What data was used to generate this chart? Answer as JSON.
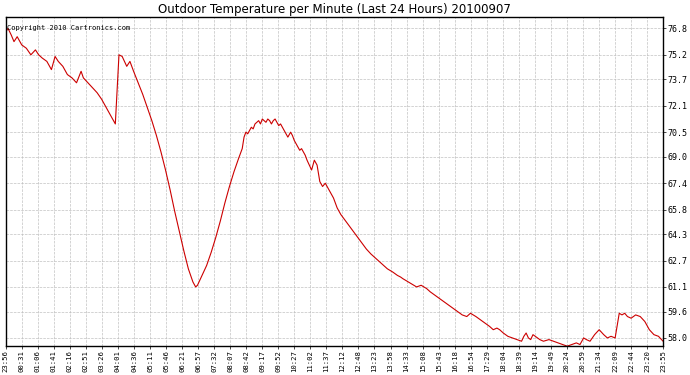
{
  "title": "Outdoor Temperature per Minute (Last 24 Hours) 20100907",
  "copyright_text": "Copyright 2010 Cartronics.com",
  "line_color": "#cc0000",
  "background_color": "#ffffff",
  "grid_color": "#bbbbbb",
  "y_min": 57.5,
  "y_max": 77.5,
  "yticks": [
    58.0,
    59.6,
    61.1,
    62.7,
    64.3,
    65.8,
    67.4,
    69.0,
    70.5,
    72.1,
    73.7,
    75.2,
    76.8
  ],
  "xtick_labels": [
    "23:56",
    "00:31",
    "01:06",
    "01:41",
    "02:16",
    "02:51",
    "03:26",
    "04:01",
    "04:36",
    "05:11",
    "05:46",
    "06:21",
    "06:57",
    "07:32",
    "08:07",
    "08:42",
    "09:17",
    "09:52",
    "10:27",
    "11:02",
    "11:37",
    "12:12",
    "12:48",
    "13:23",
    "13:58",
    "14:33",
    "15:08",
    "15:43",
    "16:18",
    "16:54",
    "17:29",
    "18:04",
    "18:39",
    "19:14",
    "19:49",
    "20:24",
    "20:59",
    "21:34",
    "22:09",
    "22:44",
    "23:20",
    "23:55"
  ],
  "curve_points": [
    [
      0,
      76.6
    ],
    [
      5,
      76.8
    ],
    [
      12,
      76.4
    ],
    [
      18,
      76.0
    ],
    [
      25,
      76.3
    ],
    [
      35,
      75.8
    ],
    [
      45,
      75.6
    ],
    [
      55,
      75.2
    ],
    [
      65,
      75.5
    ],
    [
      72,
      75.2
    ],
    [
      80,
      75.0
    ],
    [
      90,
      74.8
    ],
    [
      100,
      74.3
    ],
    [
      108,
      75.1
    ],
    [
      115,
      74.8
    ],
    [
      125,
      74.5
    ],
    [
      135,
      74.0
    ],
    [
      145,
      73.8
    ],
    [
      155,
      73.5
    ],
    [
      165,
      74.2
    ],
    [
      170,
      73.8
    ],
    [
      180,
      73.5
    ],
    [
      190,
      73.2
    ],
    [
      200,
      72.9
    ],
    [
      210,
      72.5
    ],
    [
      220,
      72.0
    ],
    [
      230,
      71.5
    ],
    [
      240,
      71.0
    ],
    [
      248,
      75.2
    ],
    [
      255,
      75.1
    ],
    [
      265,
      74.5
    ],
    [
      272,
      74.8
    ],
    [
      280,
      74.2
    ],
    [
      290,
      73.5
    ],
    [
      300,
      72.8
    ],
    [
      310,
      72.0
    ],
    [
      320,
      71.2
    ],
    [
      330,
      70.3
    ],
    [
      340,
      69.3
    ],
    [
      350,
      68.2
    ],
    [
      360,
      67.0
    ],
    [
      370,
      65.7
    ],
    [
      380,
      64.5
    ],
    [
      390,
      63.3
    ],
    [
      400,
      62.2
    ],
    [
      410,
      61.4
    ],
    [
      416,
      61.1
    ],
    [
      420,
      61.2
    ],
    [
      425,
      61.5
    ],
    [
      430,
      61.8
    ],
    [
      440,
      62.4
    ],
    [
      450,
      63.2
    ],
    [
      460,
      64.1
    ],
    [
      470,
      65.1
    ],
    [
      480,
      66.2
    ],
    [
      490,
      67.2
    ],
    [
      500,
      68.1
    ],
    [
      510,
      68.9
    ],
    [
      518,
      69.5
    ],
    [
      522,
      70.2
    ],
    [
      526,
      70.5
    ],
    [
      530,
      70.4
    ],
    [
      534,
      70.6
    ],
    [
      538,
      70.8
    ],
    [
      542,
      70.7
    ],
    [
      546,
      71.0
    ],
    [
      550,
      71.1
    ],
    [
      554,
      71.2
    ],
    [
      558,
      71.0
    ],
    [
      562,
      71.3
    ],
    [
      566,
      71.2
    ],
    [
      570,
      71.1
    ],
    [
      574,
      71.3
    ],
    [
      578,
      71.2
    ],
    [
      582,
      71.0
    ],
    [
      586,
      71.2
    ],
    [
      590,
      71.3
    ],
    [
      594,
      71.1
    ],
    [
      598,
      70.9
    ],
    [
      602,
      71.0
    ],
    [
      606,
      70.8
    ],
    [
      610,
      70.6
    ],
    [
      614,
      70.4
    ],
    [
      618,
      70.2
    ],
    [
      624,
      70.5
    ],
    [
      628,
      70.3
    ],
    [
      632,
      70.0
    ],
    [
      636,
      69.8
    ],
    [
      640,
      69.6
    ],
    [
      644,
      69.4
    ],
    [
      648,
      69.5
    ],
    [
      652,
      69.3
    ],
    [
      656,
      69.1
    ],
    [
      660,
      68.8
    ],
    [
      665,
      68.5
    ],
    [
      670,
      68.2
    ],
    [
      676,
      68.8
    ],
    [
      682,
      68.5
    ],
    [
      688,
      67.5
    ],
    [
      694,
      67.2
    ],
    [
      700,
      67.4
    ],
    [
      706,
      67.1
    ],
    [
      712,
      66.8
    ],
    [
      718,
      66.5
    ],
    [
      726,
      65.9
    ],
    [
      734,
      65.5
    ],
    [
      742,
      65.2
    ],
    [
      750,
      64.9
    ],
    [
      758,
      64.6
    ],
    [
      766,
      64.3
    ],
    [
      774,
      64.0
    ],
    [
      782,
      63.7
    ],
    [
      790,
      63.4
    ],
    [
      800,
      63.1
    ],
    [
      812,
      62.8
    ],
    [
      824,
      62.5
    ],
    [
      836,
      62.2
    ],
    [
      848,
      62.0
    ],
    [
      858,
      61.8
    ],
    [
      865,
      61.7
    ],
    [
      870,
      61.6
    ],
    [
      876,
      61.5
    ],
    [
      882,
      61.4
    ],
    [
      888,
      61.3
    ],
    [
      894,
      61.2
    ],
    [
      900,
      61.1
    ],
    [
      910,
      61.2
    ],
    [
      916,
      61.1
    ],
    [
      922,
      61.0
    ],
    [
      930,
      60.8
    ],
    [
      940,
      60.6
    ],
    [
      950,
      60.4
    ],
    [
      960,
      60.2
    ],
    [
      970,
      60.0
    ],
    [
      980,
      59.8
    ],
    [
      990,
      59.6
    ],
    [
      1000,
      59.4
    ],
    [
      1010,
      59.3
    ],
    [
      1018,
      59.5
    ],
    [
      1024,
      59.4
    ],
    [
      1030,
      59.3
    ],
    [
      1040,
      59.1
    ],
    [
      1050,
      58.9
    ],
    [
      1060,
      58.7
    ],
    [
      1068,
      58.5
    ],
    [
      1076,
      58.6
    ],
    [
      1082,
      58.5
    ],
    [
      1090,
      58.3
    ],
    [
      1100,
      58.1
    ],
    [
      1110,
      58.0
    ],
    [
      1120,
      57.9
    ],
    [
      1130,
      57.8
    ],
    [
      1135,
      58.1
    ],
    [
      1140,
      58.3
    ],
    [
      1145,
      58.0
    ],
    [
      1150,
      57.9
    ],
    [
      1155,
      58.2
    ],
    [
      1160,
      58.1
    ],
    [
      1165,
      58.0
    ],
    [
      1170,
      57.9
    ],
    [
      1178,
      57.8
    ],
    [
      1190,
      57.9
    ],
    [
      1200,
      57.8
    ],
    [
      1210,
      57.7
    ],
    [
      1220,
      57.6
    ],
    [
      1230,
      57.5
    ],
    [
      1240,
      57.6
    ],
    [
      1250,
      57.7
    ],
    [
      1258,
      57.6
    ],
    [
      1266,
      58.0
    ],
    [
      1272,
      57.9
    ],
    [
      1280,
      57.8
    ],
    [
      1290,
      58.2
    ],
    [
      1300,
      58.5
    ],
    [
      1310,
      58.2
    ],
    [
      1318,
      58.0
    ],
    [
      1326,
      58.1
    ],
    [
      1335,
      58.0
    ],
    [
      1344,
      59.5
    ],
    [
      1350,
      59.4
    ],
    [
      1356,
      59.5
    ],
    [
      1362,
      59.3
    ],
    [
      1370,
      59.2
    ],
    [
      1380,
      59.4
    ],
    [
      1390,
      59.3
    ],
    [
      1400,
      59.0
    ],
    [
      1410,
      58.5
    ],
    [
      1420,
      58.2
    ],
    [
      1430,
      58.1
    ],
    [
      1440,
      57.8
    ]
  ]
}
